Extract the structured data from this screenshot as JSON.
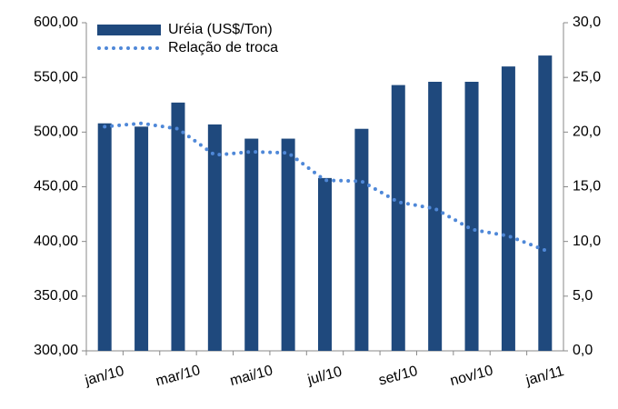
{
  "chart_data": {
    "type": "combo",
    "categories": [
      "jan/10",
      null,
      "mar/10",
      null,
      "mai/10",
      null,
      "jul/10",
      null,
      "set/10",
      null,
      "nov/10",
      null,
      "jan/11"
    ],
    "series": [
      {
        "name": "Uréia (US$/Ton)",
        "type": "bar",
        "color": "#1f497d",
        "values": [
          508,
          505,
          527,
          507,
          494,
          494,
          458,
          503,
          543,
          546,
          546,
          560,
          570
        ]
      },
      {
        "name": "Relação de troca",
        "type": "line",
        "line_style": "dotted",
        "axis": "y2",
        "color": "#4f88d8",
        "values": [
          20.5,
          20.8,
          20.3,
          17.9,
          18.2,
          18.1,
          15.6,
          15.5,
          13.6,
          13.0,
          11.1,
          10.5,
          9.2
        ]
      }
    ],
    "ylim": [
      300,
      600
    ],
    "yticks": [
      {
        "value": 300,
        "label": "300,00"
      },
      {
        "value": 350,
        "label": "350,00"
      },
      {
        "value": 400,
        "label": "400,00"
      },
      {
        "value": 450,
        "label": "450,00"
      },
      {
        "value": 500,
        "label": "500,00"
      },
      {
        "value": 550,
        "label": "550,00"
      },
      {
        "value": 600,
        "label": "600,00"
      }
    ],
    "y2lim": [
      0,
      30
    ],
    "y2ticks": [
      {
        "value": 0,
        "label": "0,0"
      },
      {
        "value": 5,
        "label": "5,0"
      },
      {
        "value": 10,
        "label": "10,0"
      },
      {
        "value": 15,
        "label": "15,0"
      },
      {
        "value": 20,
        "label": "20,0"
      },
      {
        "value": 25,
        "label": "25,0"
      },
      {
        "value": 30,
        "label": "30,0"
      }
    ],
    "legend": "top-left"
  }
}
